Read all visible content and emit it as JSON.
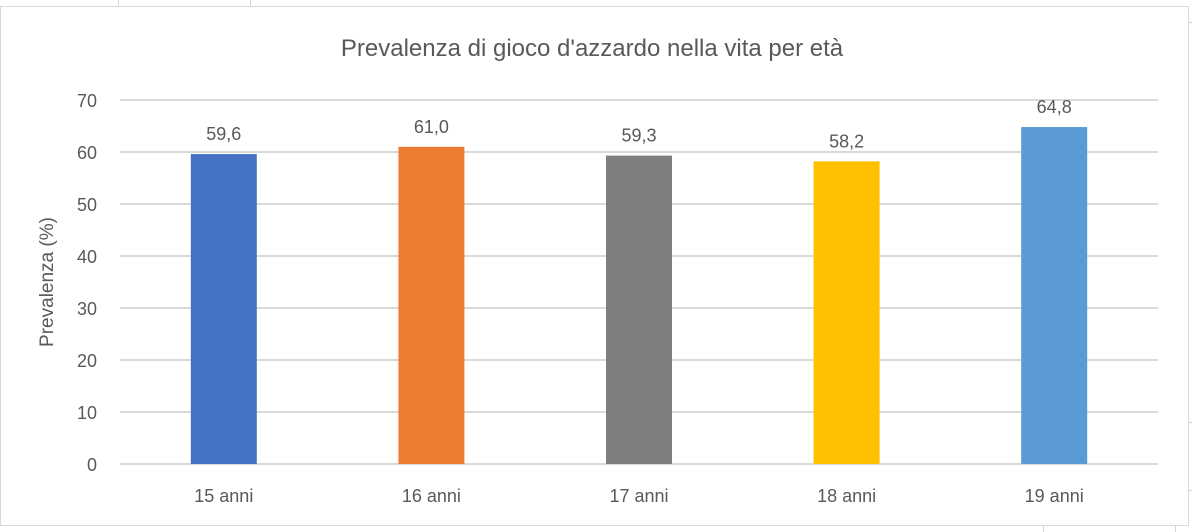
{
  "chart_data": {
    "type": "bar",
    "title": "Prevalenza di gioco d'azzardo nella vita per età",
    "xlabel": "",
    "ylabel": "Prevalenza (%)",
    "ylim": [
      0,
      70
    ],
    "yticks": [
      0,
      10,
      20,
      30,
      40,
      50,
      60,
      70
    ],
    "ytick_labels": [
      "0",
      "10",
      "20",
      "30",
      "40",
      "50",
      "60",
      "70"
    ],
    "grid": true,
    "legend": "none",
    "categories": [
      "15 anni",
      "16 anni",
      "17 anni",
      "18 anni",
      "19 anni"
    ],
    "values": [
      59.6,
      61.0,
      59.3,
      58.2,
      64.8
    ],
    "data_labels": [
      "59,6",
      "61,0",
      "59,3",
      "58,2",
      "64,8"
    ],
    "colors": [
      "#4472c4",
      "#ed7d31",
      "#7f7f7f",
      "#ffc000",
      "#5b9bd5"
    ]
  }
}
